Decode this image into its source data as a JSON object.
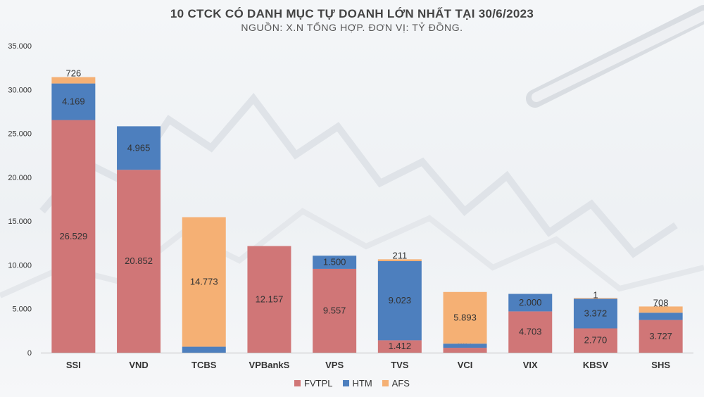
{
  "chart_data": {
    "type": "bar",
    "stacked": true,
    "title": "10 CTCK CÓ DANH MỤC TỰ DOANH LỚN NHẤT TẠI 30/6/2023",
    "subtitle": "NGUỒN: X.N TỔNG HỢP. ĐƠN VỊ: TỶ ĐỒNG.",
    "categories": [
      "SSI",
      "VND",
      "TCBS",
      "VPBankS",
      "VPS",
      "TVS",
      "VCI",
      "VIX",
      "KBSV",
      "SHS"
    ],
    "series": [
      {
        "name": "FVTPL",
        "color": "#d07677",
        "values": [
          26529,
          20852,
          0,
          12157,
          9557,
          1412,
          557,
          4703,
          2770,
          3727
        ],
        "labels": [
          "26.529",
          "20.852",
          "",
          "12.157",
          "9.557",
          "1.412",
          "557",
          "4.703",
          "2.770",
          "3.727"
        ]
      },
      {
        "name": "HTM",
        "color": "#4d7fbe",
        "values": [
          4169,
          4965,
          678,
          0,
          1500,
          9023,
          471,
          2000,
          3372,
          830
        ],
        "labels": [
          "4.169",
          "4.965",
          "678",
          "",
          "1.500",
          "9.023",
          "471",
          "2.000",
          "3.372",
          "830"
        ]
      },
      {
        "name": "AFS",
        "color": "#f5b074",
        "values": [
          726,
          0,
          14773,
          0,
          0,
          211,
          5893,
          0,
          1,
          708
        ],
        "labels": [
          "726",
          "",
          "14.773",
          "",
          "",
          "211",
          "5.893",
          "",
          "1",
          "708"
        ]
      }
    ],
    "ylim": [
      0,
      35000
    ],
    "yticks": [
      0,
      5000,
      10000,
      15000,
      20000,
      25000,
      30000,
      35000
    ],
    "ytick_labels": [
      "0",
      "5.000",
      "10.000",
      "15.000",
      "20.000",
      "25.000",
      "30.000",
      "35.000"
    ],
    "legend_position": "bottom",
    "grid": false
  }
}
